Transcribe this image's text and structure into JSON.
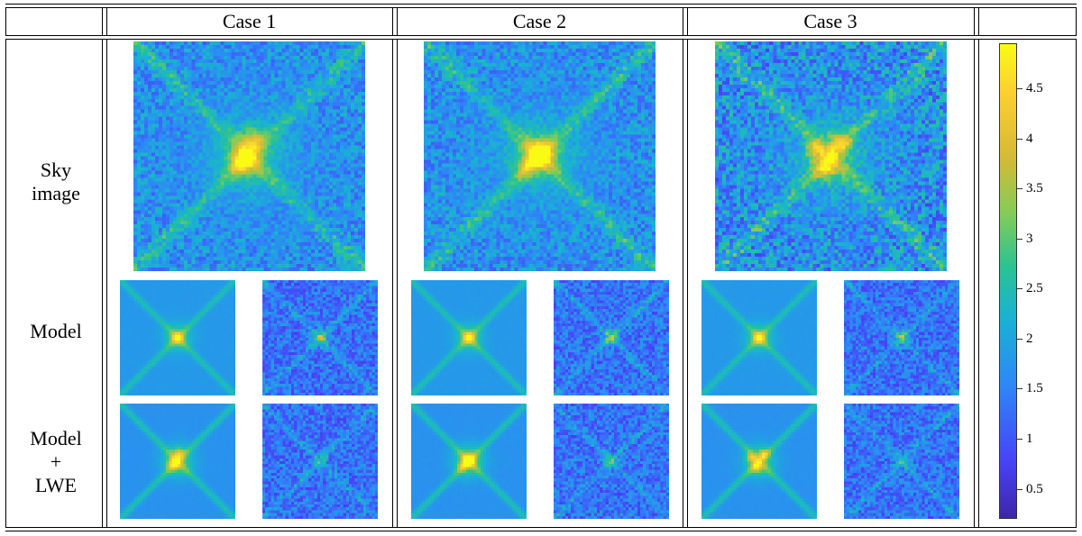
{
  "cases": [
    "Case 1",
    "Case 2",
    "Case 3"
  ],
  "row_labels": {
    "sky": [
      "Sky",
      "image"
    ],
    "model": [
      "Model"
    ],
    "model_lwe": [
      "Model",
      "+",
      "LWE"
    ]
  },
  "colorbar": {
    "ticks": [
      "0.5",
      "1",
      "1.5",
      "2",
      "2.5",
      "3",
      "3.5",
      "4",
      "4.5"
    ],
    "tick_values": [
      0.5,
      1,
      1.5,
      2,
      2.5,
      3,
      3.5,
      4,
      4.5
    ],
    "min": 0.2,
    "max": 4.95,
    "colormap": "parula",
    "colors": [
      "#3e26a8",
      "#4743f8",
      "#2e87f7",
      "#19b2d3",
      "#29c393",
      "#81cc59",
      "#d5ba36",
      "#fcd030",
      "#f9fb15"
    ]
  }
}
